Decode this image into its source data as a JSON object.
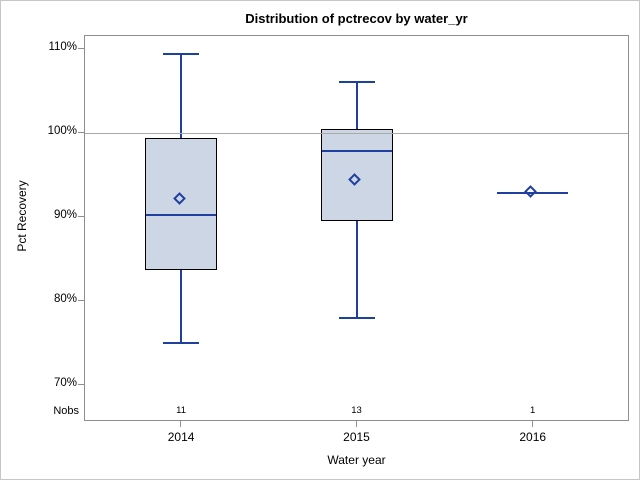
{
  "chart_data": {
    "type": "boxplot",
    "title": "Distribution of pctrecov by water_yr",
    "xlabel": "Water year",
    "ylabel": "Pct Recovery",
    "nobs_row_label": "Nobs",
    "categories": [
      "2014",
      "2015",
      "2016"
    ],
    "nobs": [
      11,
      13,
      1
    ],
    "y_axis": {
      "min": 65.9,
      "max": 111.5,
      "ticks": [
        {
          "value": 110,
          "label": "110%"
        },
        {
          "value": 100,
          "label": "100%"
        },
        {
          "value": 90,
          "label": "90%"
        },
        {
          "value": 80,
          "label": "80%"
        },
        {
          "value": 70,
          "label": "70%"
        }
      ]
    },
    "reference_line": 100,
    "boxes": [
      {
        "category": "2014",
        "n": 11,
        "whisker_low": 75.0,
        "q1": 83.7,
        "median": 90.2,
        "mean": 92.0,
        "q3": 99.4,
        "whisker_high": 109.4
      },
      {
        "category": "2015",
        "n": 13,
        "whisker_low": 78.0,
        "q1": 89.5,
        "median": 97.8,
        "mean": 94.2,
        "q3": 100.4,
        "whisker_high": 106.0
      },
      {
        "category": "2016",
        "n": 1,
        "whisker_low": 92.8,
        "q1": 92.8,
        "median": 92.8,
        "mean": 92.8,
        "q3": 92.8,
        "whisker_high": 92.8
      }
    ],
    "colors": {
      "box_fill": "#ccd6e4",
      "box_border": "#000000",
      "line_blue": "#20409f",
      "reference_gray": "#a9a9a9",
      "frame_gray": "#8e8e8e"
    }
  }
}
